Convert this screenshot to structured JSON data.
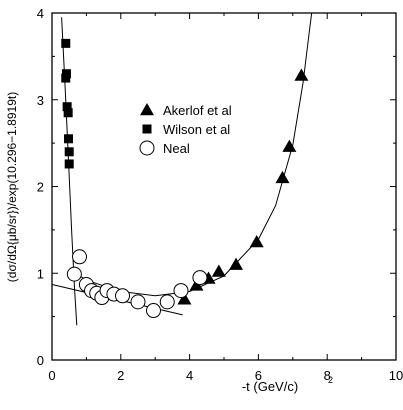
{
  "chart_data": {
    "type": "scatter",
    "title": "",
    "xlabel": "-t (GeV/c)",
    "xlabel_superscript": "2",
    "ylabel": "(dσ/dΩ{μb/sr})/exp(10.296−1.8919t)",
    "xlim": [
      0,
      10
    ],
    "ylim": [
      0,
      4
    ],
    "x_ticks": [
      0,
      2,
      4,
      6,
      8,
      10
    ],
    "y_ticks": [
      0,
      1,
      2,
      3,
      4
    ],
    "grid": false,
    "legend_position": "upper-middle",
    "series": [
      {
        "name": "Akerlof et al",
        "marker": "triangle",
        "points": [
          {
            "x": 3.85,
            "y": 0.7
          },
          {
            "x": 4.2,
            "y": 0.86
          },
          {
            "x": 4.55,
            "y": 0.94
          },
          {
            "x": 4.85,
            "y": 1.02
          },
          {
            "x": 5.35,
            "y": 1.1
          },
          {
            "x": 5.95,
            "y": 1.36
          },
          {
            "x": 6.7,
            "y": 2.1
          },
          {
            "x": 6.9,
            "y": 2.46
          },
          {
            "x": 7.25,
            "y": 3.28
          }
        ]
      },
      {
        "name": "Wilson et al",
        "marker": "square",
        "points": [
          {
            "x": 0.4,
            "y": 3.65
          },
          {
            "x": 0.42,
            "y": 3.3
          },
          {
            "x": 0.4,
            "y": 3.25
          },
          {
            "x": 0.44,
            "y": 2.92
          },
          {
            "x": 0.47,
            "y": 2.85
          },
          {
            "x": 0.48,
            "y": 2.55
          },
          {
            "x": 0.5,
            "y": 2.4
          },
          {
            "x": 0.5,
            "y": 2.26
          }
        ]
      },
      {
        "name": "Neal",
        "marker": "open-circle",
        "points": [
          {
            "x": 0.65,
            "y": 0.99
          },
          {
            "x": 0.8,
            "y": 1.19
          },
          {
            "x": 1.0,
            "y": 0.87
          },
          {
            "x": 1.15,
            "y": 0.8
          },
          {
            "x": 1.3,
            "y": 0.77
          },
          {
            "x": 1.45,
            "y": 0.72
          },
          {
            "x": 1.6,
            "y": 0.8
          },
          {
            "x": 1.8,
            "y": 0.76
          },
          {
            "x": 2.05,
            "y": 0.74
          },
          {
            "x": 2.5,
            "y": 0.67
          },
          {
            "x": 2.95,
            "y": 0.57
          },
          {
            "x": 3.35,
            "y": 0.67
          },
          {
            "x": 3.75,
            "y": 0.8
          },
          {
            "x": 4.3,
            "y": 0.95
          }
        ]
      }
    ],
    "curves": [
      {
        "style": "solid-line",
        "points": [
          {
            "x": 0.28,
            "y": 3.95
          },
          {
            "x": 0.38,
            "y": 3.15
          },
          {
            "x": 0.48,
            "y": 2.3
          },
          {
            "x": 0.57,
            "y": 1.5
          },
          {
            "x": 0.65,
            "y": 0.85
          },
          {
            "x": 0.72,
            "y": 0.4
          }
        ]
      },
      {
        "style": "solid-line",
        "points": [
          {
            "x": 0.0,
            "y": 0.87
          },
          {
            "x": 3.8,
            "y": 0.52
          }
        ]
      },
      {
        "style": "solid-line",
        "points": [
          {
            "x": 0.5,
            "y": 1.05
          },
          {
            "x": 1.0,
            "y": 0.92
          },
          {
            "x": 2.0,
            "y": 0.79
          },
          {
            "x": 3.0,
            "y": 0.74
          },
          {
            "x": 4.0,
            "y": 0.79
          },
          {
            "x": 5.0,
            "y": 0.97
          },
          {
            "x": 6.0,
            "y": 1.39
          },
          {
            "x": 6.5,
            "y": 1.78
          },
          {
            "x": 7.0,
            "y": 2.48
          },
          {
            "x": 7.3,
            "y": 3.2
          },
          {
            "x": 7.5,
            "y": 3.85
          },
          {
            "x": 7.55,
            "y": 4.0
          }
        ]
      }
    ]
  }
}
